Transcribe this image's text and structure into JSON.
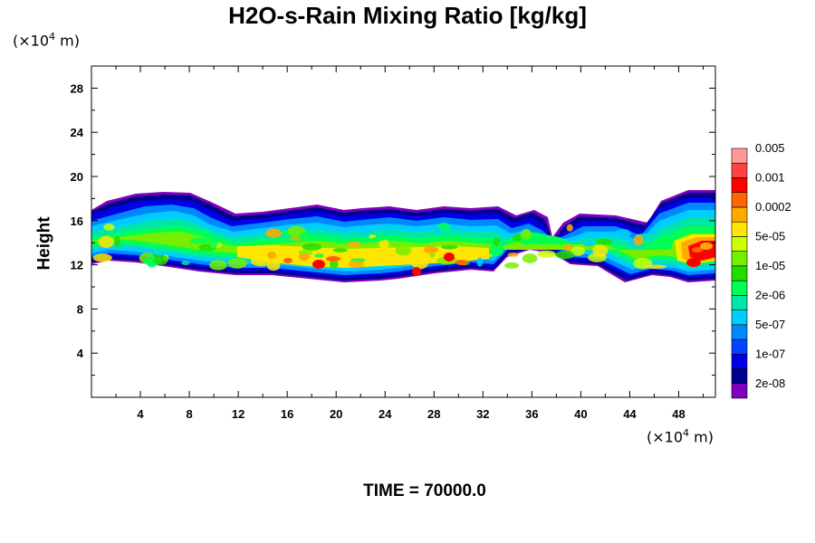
{
  "chart_data": {
    "type": "heatmap",
    "title": "H2O-s-Rain Mixing Ratio [kg/kg]",
    "ylabel": "Height",
    "x_unit": "(×10",
    "x_unit_exp": "4",
    "x_unit_tail": " m)",
    "y_unit": "(×10",
    "y_unit_exp": "4",
    "y_unit_tail": " m)",
    "xlim": [
      0,
      51
    ],
    "ylim": [
      0,
      30
    ],
    "x_ticks": [
      "4",
      "8",
      "12",
      "16",
      "20",
      "24",
      "28",
      "32",
      "36",
      "40",
      "44",
      "48"
    ],
    "y_ticks": [
      "4",
      "8",
      "12",
      "16",
      "20",
      "24",
      "28"
    ],
    "colorbar": {
      "colors": [
        "#7f00bf",
        "#00008f",
        "#0000e6",
        "#0044ff",
        "#0088ff",
        "#00ccff",
        "#00e6aa",
        "#00ff55",
        "#22dd00",
        "#77ee00",
        "#ccff00",
        "#ffe600",
        "#ffaa00",
        "#ff6600",
        "#ff0000",
        "#ff4444",
        "#ff9999"
      ],
      "labels": [
        "2e-08",
        "1e-07",
        "5e-07",
        "2e-06",
        "1e-05",
        "5e-05",
        "0.0002",
        "0.001",
        "0.005"
      ]
    },
    "footer": "TIME = 70000.0"
  }
}
